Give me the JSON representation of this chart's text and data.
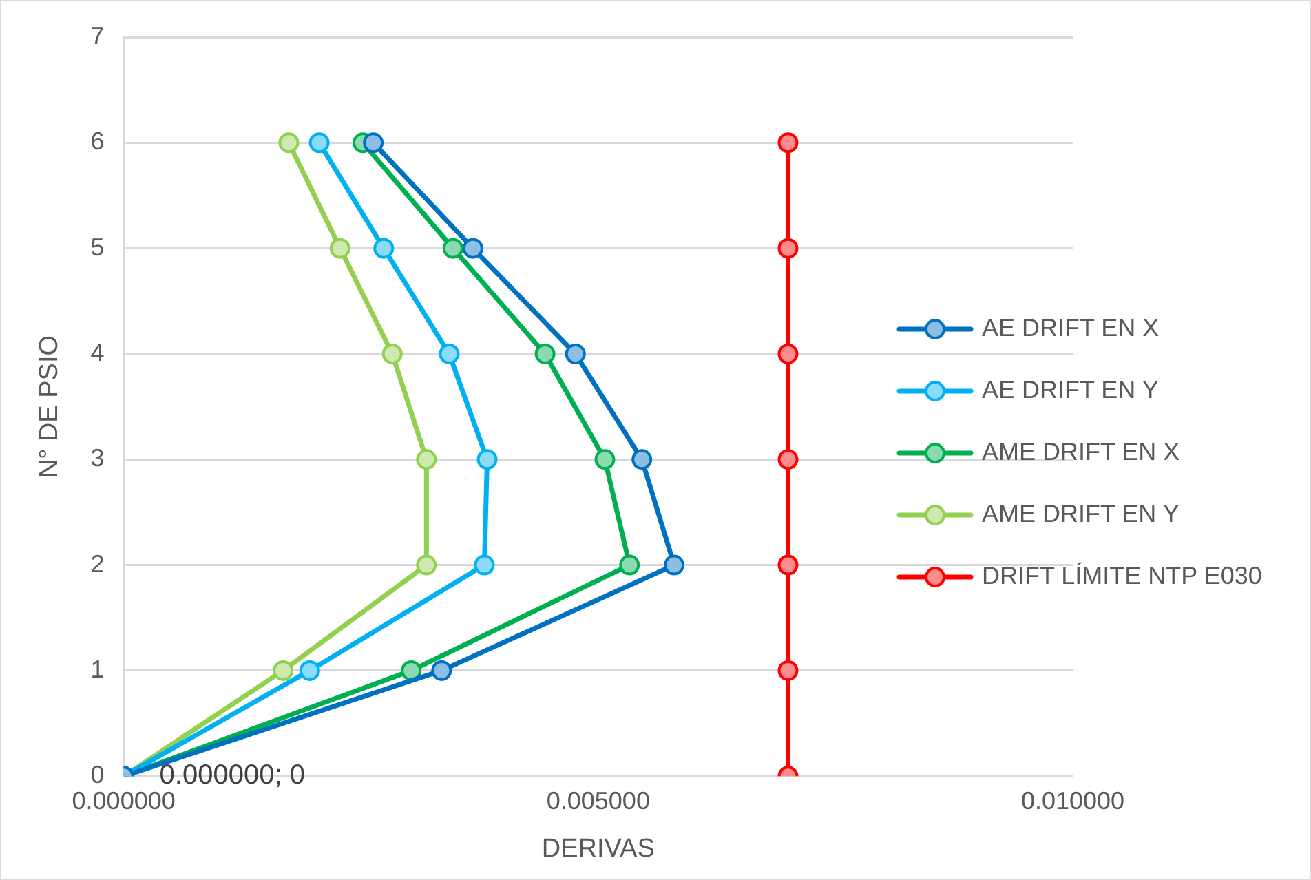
{
  "chart_data": {
    "type": "line",
    "xlabel": "DERIVAS",
    "ylabel": "N° DE PSIO",
    "xlim": [
      0,
      0.01
    ],
    "xticks": [
      {
        "value": 0,
        "label": "0.000000"
      },
      {
        "value": 0.005,
        "label": "0.005000"
      },
      {
        "value": 0.01,
        "label": "0.010000"
      }
    ],
    "ylim": [
      0,
      7
    ],
    "yticks": [
      0,
      1,
      2,
      3,
      4,
      5,
      6,
      7
    ],
    "grid": "y",
    "legend": "right",
    "marker": "circle",
    "line_style": "solid",
    "annotations": [
      {
        "text": "0.000000; 0",
        "x": 0,
        "y": 0
      }
    ],
    "series": [
      {
        "name": "AE DRIFT EN X",
        "color": "#0070c0",
        "x": [
          0,
          0.00335,
          0.0058,
          0.00546,
          0.00476,
          0.00368,
          0.00263
        ],
        "values": [
          0,
          1,
          2,
          3,
          4,
          5,
          6
        ]
      },
      {
        "name": "AE DRIFT EN Y",
        "color": "#00b0f0",
        "x": [
          0,
          0.00196,
          0.0038,
          0.00383,
          0.00343,
          0.00274,
          0.00206
        ],
        "values": [
          0,
          1,
          2,
          3,
          4,
          5,
          6
        ]
      },
      {
        "name": "AME DRIFT EN X",
        "color": "#00b050",
        "x": [
          0,
          0.00303,
          0.00533,
          0.00507,
          0.00444,
          0.00347,
          0.00252
        ],
        "values": [
          0,
          1,
          2,
          3,
          4,
          5,
          6
        ]
      },
      {
        "name": "AME DRIFT EN Y",
        "color": "#92d050",
        "x": [
          0,
          0.00168,
          0.00319,
          0.00319,
          0.00283,
          0.00228,
          0.00174
        ],
        "values": [
          0,
          1,
          2,
          3,
          4,
          5,
          6
        ]
      },
      {
        "name": "DRIFT LÍMITE NTP E030",
        "color": "#ff0000",
        "x": [
          0.007,
          0.007,
          0.007,
          0.007,
          0.007,
          0.007,
          0.007
        ],
        "values": [
          0,
          1,
          2,
          3,
          4,
          5,
          6
        ]
      }
    ]
  }
}
